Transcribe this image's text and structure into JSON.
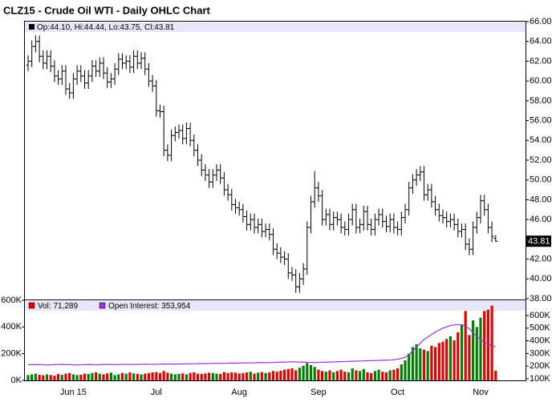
{
  "chart_data": [
    {
      "type": "ohlc",
      "title": "CLZ15 - Crude Oil WTI - Daily OHLC Chart",
      "info": "Op:44.10, Hi:44.44, Lo:43.75, Cl:43.81",
      "last_label": "43.81",
      "color": "#000000",
      "ylim": [
        38,
        66
      ],
      "yticks": [
        {
          "value": 38,
          "label": "38.00"
        },
        {
          "value": 40,
          "label": "40.00"
        },
        {
          "value": 42,
          "label": "42.00"
        },
        {
          "value": 44,
          "label": "44.00"
        },
        {
          "value": 46,
          "label": "46.00"
        },
        {
          "value": 48,
          "label": "48.00"
        },
        {
          "value": 50,
          "label": "50.00"
        },
        {
          "value": 52,
          "label": "52.00"
        },
        {
          "value": 54,
          "label": "54.00"
        },
        {
          "value": 56,
          "label": "56.00"
        },
        {
          "value": 58,
          "label": "58.00"
        },
        {
          "value": 60,
          "label": "60.00"
        },
        {
          "value": 62,
          "label": "62.00"
        },
        {
          "value": 64,
          "label": "64.00"
        },
        {
          "value": 66,
          "label": "66.00"
        }
      ],
      "ohlc": [
        [
          61.6,
          62.6,
          61.0,
          62.0
        ],
        [
          62.0,
          64.1,
          61.4,
          63.5
        ],
        [
          63.5,
          64.6,
          62.9,
          64.0
        ],
        [
          64.0,
          64.6,
          61.9,
          62.5
        ],
        [
          62.5,
          63.1,
          61.2,
          61.8
        ],
        [
          61.8,
          63.1,
          61.2,
          62.5
        ],
        [
          62.5,
          63.1,
          60.9,
          61.5
        ],
        [
          61.5,
          62.1,
          59.9,
          60.5
        ],
        [
          60.5,
          61.1,
          59.6,
          60.2
        ],
        [
          60.2,
          61.6,
          59.6,
          61.0
        ],
        [
          61.0,
          61.6,
          58.6,
          59.2
        ],
        [
          59.2,
          59.8,
          58.2,
          58.8
        ],
        [
          58.8,
          60.8,
          58.2,
          60.2
        ],
        [
          60.2,
          61.6,
          59.6,
          61.0
        ],
        [
          61.0,
          61.6,
          59.9,
          60.5
        ],
        [
          60.5,
          61.1,
          59.2,
          59.8
        ],
        [
          59.8,
          61.1,
          59.2,
          60.5
        ],
        [
          60.5,
          62.1,
          59.9,
          61.5
        ],
        [
          61.5,
          62.1,
          60.4,
          61.0
        ],
        [
          61.0,
          62.4,
          60.4,
          61.8
        ],
        [
          61.8,
          62.4,
          60.2,
          60.8
        ],
        [
          60.8,
          61.4,
          59.3,
          59.9
        ],
        [
          59.9,
          60.8,
          59.3,
          60.2
        ],
        [
          60.2,
          61.8,
          59.6,
          61.2
        ],
        [
          61.2,
          62.8,
          60.6,
          62.2
        ],
        [
          62.2,
          62.8,
          61.2,
          61.8
        ],
        [
          61.8,
          62.6,
          61.2,
          62.0
        ],
        [
          62.0,
          62.6,
          60.8,
          61.4
        ],
        [
          61.4,
          63.1,
          60.8,
          62.5
        ],
        [
          62.5,
          63.1,
          61.2,
          61.8
        ],
        [
          61.8,
          62.9,
          61.2,
          62.3
        ],
        [
          62.3,
          62.9,
          60.6,
          61.2
        ],
        [
          61.2,
          61.8,
          59.4,
          60.0
        ],
        [
          60.0,
          60.6,
          58.9,
          59.5
        ],
        [
          59.5,
          60.1,
          56.4,
          57.0
        ],
        [
          57.0,
          57.6,
          56.3,
          56.9
        ],
        [
          56.9,
          57.5,
          52.4,
          53.0
        ],
        [
          53.0,
          53.6,
          51.9,
          52.5
        ],
        [
          52.5,
          55.1,
          51.9,
          54.5
        ],
        [
          54.5,
          55.4,
          53.9,
          54.8
        ],
        [
          54.8,
          55.6,
          54.2,
          55.0
        ],
        [
          55.0,
          55.6,
          53.6,
          54.2
        ],
        [
          54.2,
          55.8,
          53.6,
          55.2
        ],
        [
          55.2,
          55.8,
          53.4,
          54.0
        ],
        [
          54.0,
          54.6,
          52.4,
          53.0
        ],
        [
          53.0,
          53.6,
          51.4,
          52.0
        ],
        [
          52.0,
          52.6,
          50.4,
          51.0
        ],
        [
          51.0,
          51.6,
          49.9,
          50.5
        ],
        [
          50.5,
          51.1,
          49.2,
          49.8
        ],
        [
          49.8,
          51.1,
          49.2,
          50.5
        ],
        [
          50.5,
          51.6,
          49.9,
          51.0
        ],
        [
          51.0,
          51.6,
          49.6,
          50.2
        ],
        [
          50.2,
          50.8,
          48.4,
          49.0
        ],
        [
          49.0,
          49.6,
          47.9,
          48.5
        ],
        [
          48.5,
          49.1,
          46.9,
          47.5
        ],
        [
          47.5,
          48.1,
          46.6,
          47.2
        ],
        [
          47.2,
          47.8,
          46.4,
          47.0
        ],
        [
          47.0,
          47.6,
          45.7,
          46.3
        ],
        [
          46.3,
          46.9,
          44.9,
          45.5
        ],
        [
          45.5,
          46.6,
          44.9,
          46.0
        ],
        [
          46.0,
          46.6,
          44.6,
          45.2
        ],
        [
          45.2,
          46.1,
          44.6,
          45.5
        ],
        [
          45.5,
          46.1,
          44.2,
          44.8
        ],
        [
          44.8,
          45.6,
          44.2,
          45.0
        ],
        [
          45.0,
          45.6,
          43.9,
          44.5
        ],
        [
          44.5,
          45.1,
          42.4,
          43.0
        ],
        [
          43.0,
          43.6,
          42.0,
          42.6
        ],
        [
          42.6,
          43.2,
          41.6,
          42.2
        ],
        [
          42.2,
          42.8,
          41.4,
          42.0
        ],
        [
          42.0,
          42.6,
          40.0,
          40.6
        ],
        [
          40.6,
          41.2,
          39.8,
          40.4
        ],
        [
          40.4,
          41.0,
          38.6,
          39.2
        ],
        [
          39.2,
          40.6,
          38.6,
          40.0
        ],
        [
          40.0,
          41.6,
          39.4,
          41.0
        ],
        [
          41.0,
          45.8,
          40.4,
          45.2
        ],
        [
          45.2,
          48.4,
          44.6,
          47.8
        ],
        [
          47.8,
          50.9,
          47.2,
          49.2
        ],
        [
          49.2,
          49.8,
          47.8,
          48.4
        ],
        [
          48.4,
          49.0,
          45.4,
          46.0
        ],
        [
          46.0,
          47.1,
          45.4,
          46.5
        ],
        [
          46.5,
          47.1,
          44.9,
          45.5
        ],
        [
          45.5,
          46.8,
          44.9,
          46.2
        ],
        [
          46.2,
          46.8,
          45.4,
          46.0
        ],
        [
          46.0,
          46.6,
          44.6,
          45.2
        ],
        [
          45.2,
          45.8,
          44.4,
          45.0
        ],
        [
          45.0,
          46.6,
          44.4,
          46.0
        ],
        [
          46.0,
          47.6,
          45.4,
          47.0
        ],
        [
          47.0,
          47.6,
          44.6,
          45.2
        ],
        [
          45.2,
          46.1,
          44.6,
          45.5
        ],
        [
          45.5,
          47.4,
          44.9,
          46.8
        ],
        [
          46.8,
          47.4,
          44.9,
          45.5
        ],
        [
          45.5,
          46.1,
          44.4,
          45.0
        ],
        [
          45.0,
          46.6,
          44.4,
          46.0
        ],
        [
          46.0,
          47.1,
          45.4,
          46.5
        ],
        [
          46.5,
          47.1,
          45.2,
          45.8
        ],
        [
          45.8,
          46.4,
          44.7,
          45.3
        ],
        [
          45.3,
          46.6,
          44.7,
          46.0
        ],
        [
          46.0,
          46.6,
          44.6,
          45.2
        ],
        [
          45.2,
          45.8,
          44.4,
          45.0
        ],
        [
          45.0,
          46.8,
          44.4,
          46.2
        ],
        [
          46.2,
          47.6,
          45.6,
          47.0
        ],
        [
          47.0,
          49.8,
          46.4,
          49.2
        ],
        [
          49.2,
          50.6,
          48.6,
          50.0
        ],
        [
          50.0,
          51.1,
          49.4,
          50.5
        ],
        [
          50.5,
          51.4,
          49.9,
          50.8
        ],
        [
          50.8,
          51.4,
          47.9,
          48.5
        ],
        [
          48.5,
          49.6,
          47.9,
          49.0
        ],
        [
          49.0,
          49.6,
          47.2,
          47.8
        ],
        [
          47.8,
          48.4,
          46.4,
          47.0
        ],
        [
          47.0,
          47.6,
          45.8,
          46.4
        ],
        [
          46.4,
          47.0,
          45.6,
          46.2
        ],
        [
          46.2,
          46.8,
          45.2,
          45.8
        ],
        [
          45.8,
          46.6,
          45.2,
          46.0
        ],
        [
          46.0,
          46.6,
          44.9,
          45.5
        ],
        [
          45.5,
          46.1,
          44.2,
          44.8
        ],
        [
          44.8,
          45.6,
          44.2,
          45.0
        ],
        [
          45.0,
          45.6,
          42.9,
          43.5
        ],
        [
          43.5,
          44.1,
          42.4,
          43.0
        ],
        [
          43.0,
          45.8,
          42.4,
          45.2
        ],
        [
          45.2,
          46.8,
          44.6,
          46.2
        ],
        [
          46.2,
          48.5,
          45.6,
          47.9
        ],
        [
          47.9,
          48.5,
          46.4,
          47.0
        ],
        [
          47.0,
          47.6,
          44.6,
          45.2
        ],
        [
          45.2,
          45.8,
          43.7,
          44.3
        ],
        [
          44.1,
          44.44,
          43.75,
          43.81
        ]
      ]
    },
    {
      "type": "bar",
      "categories": [
        null,
        null,
        null,
        null,
        null,
        null,
        null,
        null,
        null,
        null,
        null,
        null,
        "Jun 15",
        null,
        null,
        null,
        null,
        null,
        null,
        null,
        null,
        null,
        null,
        null,
        null,
        null,
        null,
        null,
        null,
        null,
        null,
        null,
        null,
        null,
        "Jul",
        null,
        null,
        null,
        null,
        null,
        null,
        null,
        null,
        null,
        null,
        null,
        null,
        null,
        null,
        null,
        null,
        null,
        null,
        null,
        null,
        null,
        "Aug",
        null,
        null,
        null,
        null,
        null,
        null,
        null,
        null,
        null,
        null,
        null,
        null,
        null,
        null,
        null,
        null,
        null,
        null,
        null,
        null,
        "Sep",
        null,
        null,
        null,
        null,
        null,
        null,
        null,
        null,
        null,
        null,
        null,
        null,
        null,
        null,
        null,
        null,
        null,
        null,
        null,
        null,
        "Oct",
        null,
        null,
        null,
        null,
        null,
        null,
        null,
        null,
        null,
        null,
        null,
        null,
        null,
        null,
        null,
        null,
        null,
        null,
        null,
        null,
        null,
        "Nov",
        null,
        null,
        null,
        null
      ],
      "ylim": [
        0,
        600000
      ],
      "yticks": [
        {
          "value": 0,
          "label": "0K"
        },
        {
          "value": 200000,
          "label": "200K"
        },
        {
          "value": 400000,
          "label": "400K"
        },
        {
          "value": 600000,
          "label": "600K"
        }
      ],
      "y2lim": [
        87000,
        720000
      ],
      "y2ticks": [
        {
          "value": 100000,
          "label": "100K"
        },
        {
          "value": 200000,
          "label": "200K"
        },
        {
          "value": 300000,
          "label": "300K"
        },
        {
          "value": 400000,
          "label": "400K"
        },
        {
          "value": 500000,
          "label": "500K"
        },
        {
          "value": 600000,
          "label": "600K"
        }
      ],
      "series": [
        {
          "name": "Vol: 71,289",
          "color": "#e00000",
          "up_color": "#008000",
          "values": [
            40000,
            45000,
            50000,
            42000,
            38000,
            45000,
            40000,
            35000,
            48000,
            42000,
            50000,
            55000,
            45000,
            40000,
            42000,
            50000,
            48000,
            55000,
            60000,
            50000,
            45000,
            52000,
            58000,
            40000,
            45000,
            55000,
            50000,
            60000,
            52000,
            48000,
            45000,
            50000,
            55000,
            60000,
            62000,
            55000,
            70000,
            58000,
            50000,
            45000,
            48000,
            52000,
            45000,
            55000,
            60000,
            50000,
            48000,
            52000,
            58000,
            55000,
            50000,
            48000,
            62000,
            55000,
            60000,
            58000,
            52000,
            55000,
            60000,
            65000,
            50000,
            58000,
            62000,
            55000,
            60000,
            70000,
            65000,
            72000,
            80000,
            85000,
            90000,
            75000,
            95000,
            110000,
            130000,
            115000,
            100000,
            80000,
            70000,
            65000,
            75000,
            60000,
            70000,
            80000,
            65000,
            60000,
            90000,
            75000,
            70000,
            85000,
            60000,
            55000,
            70000,
            80000,
            65000,
            60000,
            75000,
            80000,
            90000,
            120000,
            150000,
            200000,
            250000,
            270000,
            240000,
            230000,
            220000,
            260000,
            250000,
            280000,
            290000,
            310000,
            330000,
            300000,
            360000,
            420000,
            520000,
            340000,
            450000,
            400000,
            470000,
            520000,
            530000,
            560000,
            71289
          ]
        },
        {
          "name": "Open Interest: 353,954",
          "color": "#a030e0",
          "axis": "y2",
          "values": [
            210000,
            211000,
            212000,
            211000,
            210000,
            209000,
            210000,
            211000,
            212000,
            213000,
            212000,
            211000,
            210000,
            209000,
            210000,
            211000,
            212000,
            211000,
            210000,
            211000,
            212000,
            213000,
            212000,
            211000,
            212000,
            213000,
            214000,
            213000,
            212000,
            213000,
            214000,
            215000,
            214000,
            213000,
            214000,
            215000,
            216000,
            217000,
            216000,
            215000,
            216000,
            217000,
            218000,
            217000,
            218000,
            219000,
            220000,
            219000,
            220000,
            221000,
            222000,
            221000,
            222000,
            223000,
            224000,
            223000,
            224000,
            225000,
            226000,
            225000,
            226000,
            227000,
            228000,
            227000,
            228000,
            229000,
            230000,
            231000,
            232000,
            233000,
            234000,
            233000,
            232000,
            231000,
            230000,
            229000,
            228000,
            229000,
            230000,
            231000,
            232000,
            233000,
            234000,
            235000,
            236000,
            237000,
            238000,
            239000,
            240000,
            241000,
            242000,
            243000,
            244000,
            245000,
            246000,
            247000,
            248000,
            250000,
            255000,
            260000,
            270000,
            290000,
            320000,
            350000,
            380000,
            410000,
            430000,
            450000,
            470000,
            485000,
            500000,
            510000,
            520000,
            525000,
            528000,
            525000,
            515000,
            495000,
            465000,
            435000,
            410000,
            390000,
            375000,
            362000,
            353954
          ]
        }
      ]
    }
  ]
}
